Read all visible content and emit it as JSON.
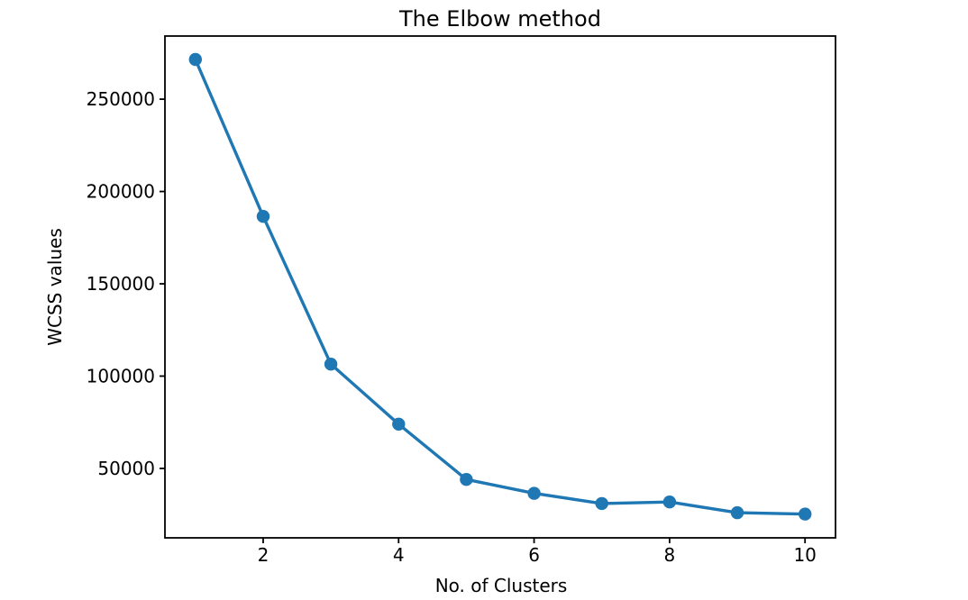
{
  "figure": {
    "background_color": "#ffffff",
    "text_color": "#000000",
    "spine_color": "#000000"
  },
  "chart_data": {
    "type": "line",
    "title": "The Elbow method",
    "xlabel": "No. of Clusters",
    "ylabel": "WCSS values",
    "x": [
      1,
      2,
      3,
      4,
      5,
      6,
      7,
      8,
      9,
      10
    ],
    "y": [
      271500,
      186500,
      106500,
      74000,
      44000,
      36500,
      31000,
      31800,
      26000,
      25300
    ],
    "series_name": "WCSS",
    "xticks": [
      2,
      4,
      6,
      8,
      10
    ],
    "yticks": [
      50000,
      100000,
      150000,
      200000,
      250000
    ],
    "xtick_labels": [
      "2",
      "4",
      "6",
      "8",
      "10"
    ],
    "ytick_labels": [
      "50000",
      "100000",
      "150000",
      "200000",
      "250000"
    ],
    "xlim": [
      0.55,
      10.45
    ],
    "ylim": [
      12400,
      284200
    ],
    "grid": false,
    "legend": "none",
    "line_color": "#1f77b4",
    "marker": "o",
    "marker_color": "#1f77b4"
  }
}
